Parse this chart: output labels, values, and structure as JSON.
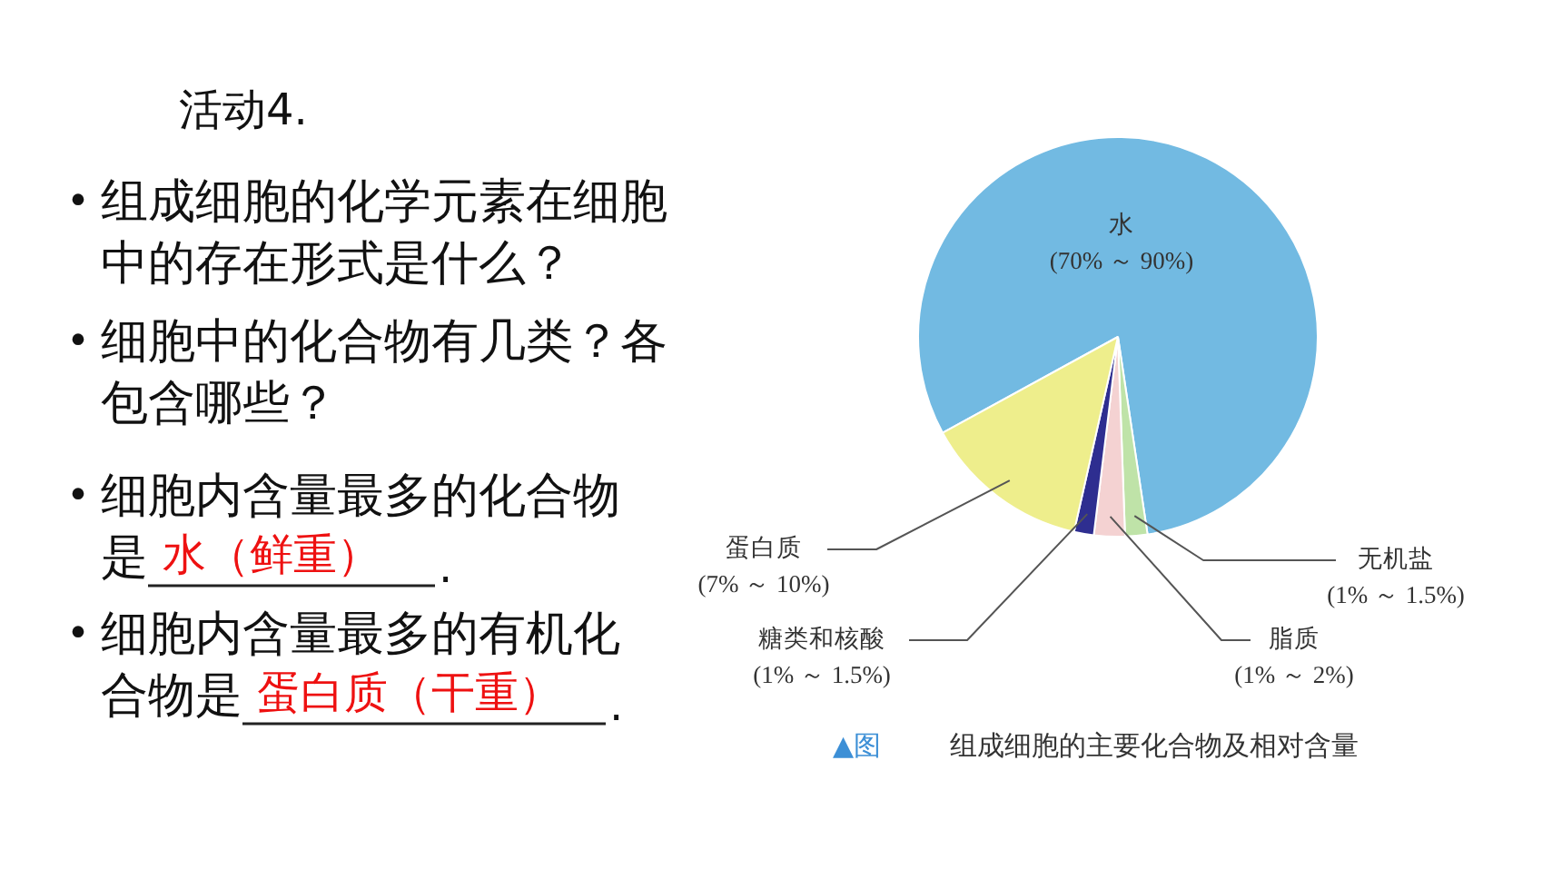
{
  "chart_data": {
    "type": "pie",
    "title": "活动4.",
    "categories": [
      "水\n(70% ～ 90%)",
      "无机盐\n(1% ～ 1.5%)",
      "脂质\n(1% ～ 2%)",
      "糖类和核酸\n(1% ～ 1.5%)",
      "蛋白质\n(7% ～ 10%)"
    ],
    "values": [
      80.6,
      1.8,
      2.5,
      1.6,
      13.5
    ],
    "colors": [
      "#72bae2",
      "#bfe3a8",
      "#f4d2d2",
      "#2e2e90",
      "#eeee8c"
    ],
    "annotations": [
      "• 组成细胞的化学元素在细胞中的存在形式是什么？",
      "• 细胞中的化合物有几类？各包含哪些？",
      "• 细胞内含量最多的化合物",
      "是",
      "水（鲜重）",
      ".",
      "• 细胞内含量最多的有机化",
      "合物是",
      "蛋白质（干重）",
      ".",
      "▲图",
      "组成细胞的主要化合物及相对含量"
    ]
  }
}
